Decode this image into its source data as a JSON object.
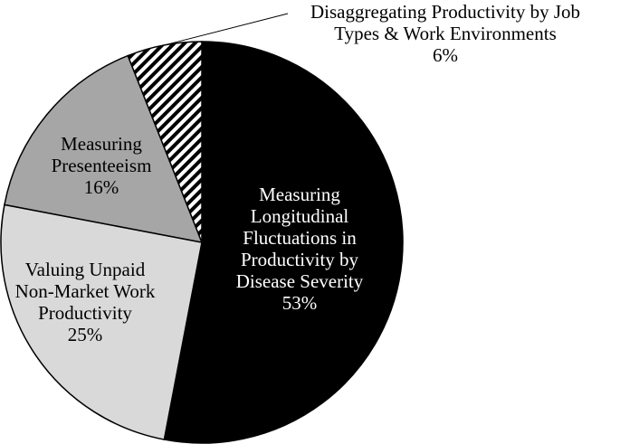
{
  "chart_data": {
    "type": "pie",
    "slices": [
      {
        "label_lines": [
          "Measuring",
          "Longitudinal",
          "Fluctuations in",
          "Productivity by",
          "Disease Severity"
        ],
        "percent_label": "53%",
        "value": 53,
        "fill": "#000000",
        "pattern": "solid",
        "text_color": "#ffffff"
      },
      {
        "label_lines": [
          "Valuing Unpaid",
          "Non-Market Work",
          "Productivity"
        ],
        "percent_label": "25%",
        "value": 25,
        "fill": "#d9d9d9",
        "pattern": "solid",
        "text_color": "#000000"
      },
      {
        "label_lines": [
          "Measuring",
          "Presenteeism"
        ],
        "percent_label": "16%",
        "value": 16,
        "fill": "#a6a6a6",
        "pattern": "solid",
        "text_color": "#000000"
      },
      {
        "label_lines": [
          "Disaggregating Productivity by Job",
          "Types & Work Environments"
        ],
        "percent_label": "6%",
        "value": 6,
        "fill": "#ffffff",
        "pattern": "diagonal-stripes",
        "text_color": "#000000",
        "label_placement": "outside-top-right"
      }
    ],
    "start_angle": "12 o'clock",
    "direction": "clockwise",
    "legend": "none"
  }
}
